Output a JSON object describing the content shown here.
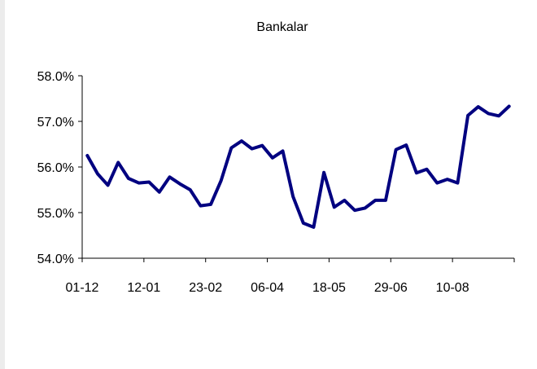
{
  "chart_data": {
    "type": "line",
    "title": "Bankalar",
    "xlabel": "",
    "ylabel": "",
    "ylim": [
      54.0,
      58.0
    ],
    "y_ticks": [
      "54.0%",
      "55.0%",
      "56.0%",
      "57.0%",
      "58.0%"
    ],
    "y_tick_values": [
      54.0,
      55.0,
      56.0,
      57.0,
      58.0
    ],
    "x_tick_labels": [
      "01-12",
      "12-01",
      "23-02",
      "06-04",
      "18-05",
      "29-06",
      "10-08"
    ],
    "grid": false,
    "legend": "none",
    "line_color": "#000080",
    "series": [
      {
        "values": [
          56.25,
          55.85,
          55.6,
          56.1,
          55.75,
          55.65,
          55.67,
          55.45,
          55.78,
          55.63,
          55.5,
          55.15,
          55.18,
          55.7,
          56.42,
          56.57,
          56.4,
          56.47,
          56.2,
          56.35,
          55.35,
          54.77,
          54.68,
          55.88,
          55.12,
          55.27,
          55.05,
          55.1,
          55.27,
          55.27,
          56.38,
          56.48,
          55.87,
          55.95,
          55.65,
          55.73,
          55.65,
          57.13,
          57.32,
          57.17,
          57.12,
          57.33
        ]
      }
    ]
  }
}
